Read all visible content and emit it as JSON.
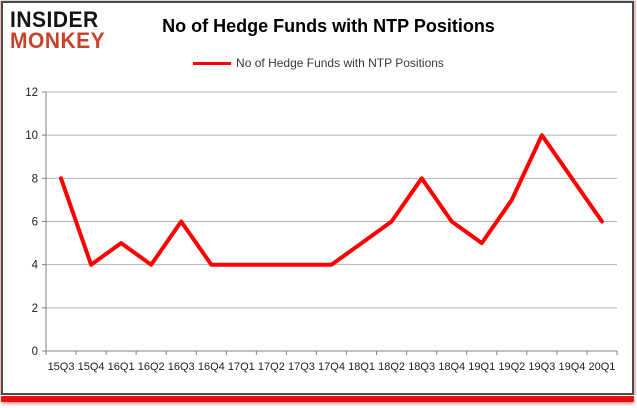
{
  "logo": {
    "line1": "INSIDER",
    "line2": "MONKEY"
  },
  "header": {
    "title": "No of Hedge Funds with NTP Positions"
  },
  "legend": {
    "label": "No of Hedge Funds with NTP Positions"
  },
  "colors": {
    "series_line": "#ff0000",
    "gridline": "#b3b3b3",
    "axis_line": "#808080",
    "tick_label": "#1f1f1f",
    "logo_black": "#141414",
    "logo_red": "#c7432e",
    "frame_border": "#4b4b4b",
    "bottom_bar_red": "#ea0d0d",
    "side_glow_pink": "#f4bcb6",
    "legend_text": "#3a3a3a",
    "title_text": "#000000"
  },
  "chart_data": {
    "type": "line",
    "title": "No of Hedge Funds with NTP Positions",
    "categories": [
      "15Q3",
      "15Q4",
      "16Q1",
      "16Q2",
      "16Q3",
      "16Q4",
      "17Q1",
      "17Q2",
      "17Q3",
      "17Q4",
      "18Q1",
      "18Q2",
      "18Q3",
      "18Q4",
      "19Q1",
      "19Q2",
      "19Q3",
      "19Q4",
      "20Q1"
    ],
    "values": [
      8,
      4,
      5,
      4,
      6,
      4,
      4,
      4,
      4,
      4,
      5,
      6,
      8,
      6,
      5,
      7,
      10,
      8,
      6
    ],
    "xlabel": "",
    "ylabel": "",
    "ylim": [
      0,
      12
    ],
    "yticks": [
      0,
      2,
      4,
      6,
      8,
      10,
      12
    ],
    "grid": true,
    "legend_position": "top-center",
    "series": [
      {
        "name": "No of Hedge Funds with NTP Positions",
        "color": "#ff0000",
        "values": [
          8,
          4,
          5,
          4,
          6,
          4,
          4,
          4,
          4,
          4,
          5,
          6,
          8,
          6,
          5,
          7,
          10,
          8,
          6
        ]
      }
    ]
  }
}
